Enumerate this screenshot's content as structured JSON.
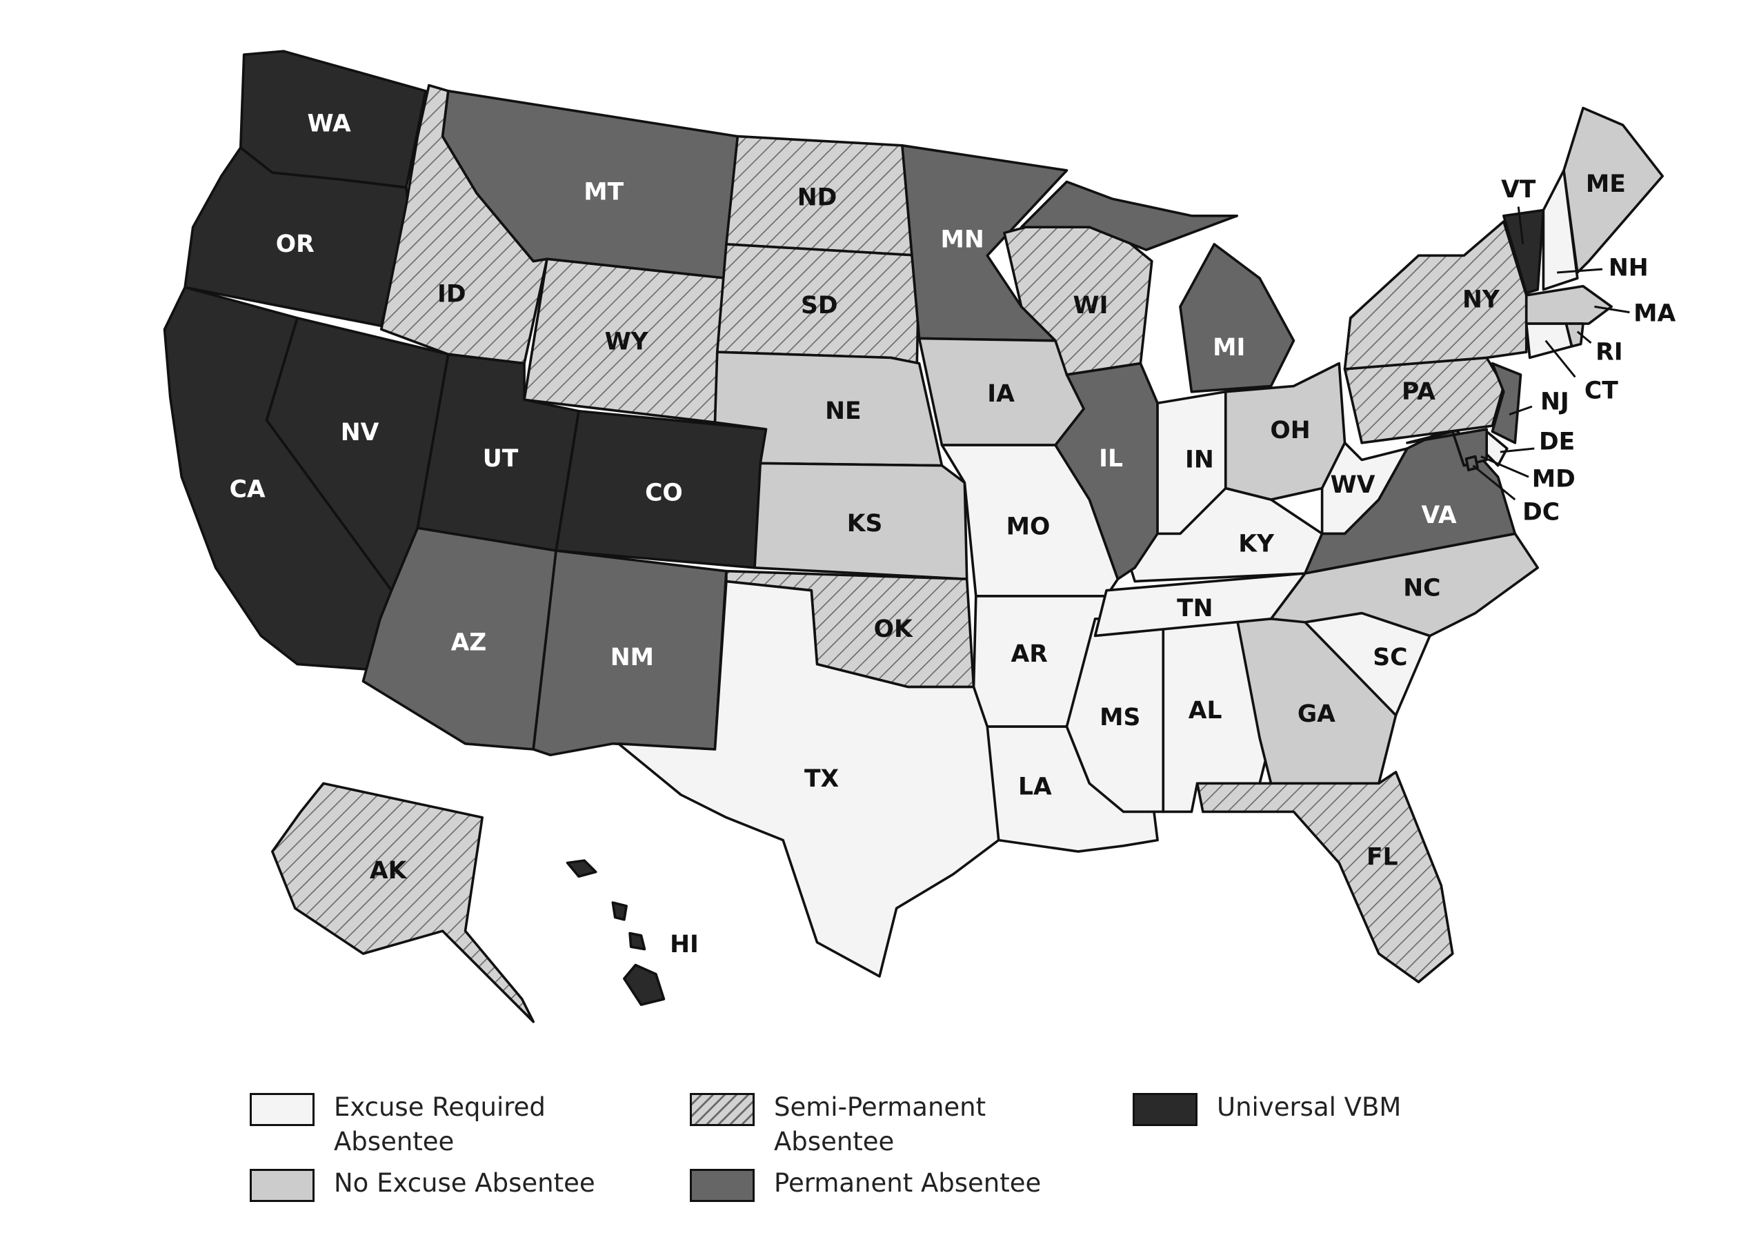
{
  "states": [
    {
      "label": "WA",
      "category": "Universal VBM"
    },
    {
      "label": "OR",
      "category": "Universal VBM"
    },
    {
      "label": "CA",
      "category": "Universal VBM"
    },
    {
      "label": "NV",
      "category": "Universal VBM"
    },
    {
      "label": "ID",
      "category": "Semi-Permanent Absentee"
    },
    {
      "label": "MT",
      "category": "Permanent Absentee"
    },
    {
      "label": "WY",
      "category": "Semi-Permanent Absentee"
    },
    {
      "label": "UT",
      "category": "Universal VBM"
    },
    {
      "label": "CO",
      "category": "Universal VBM"
    },
    {
      "label": "AZ",
      "category": "Permanent Absentee"
    },
    {
      "label": "NM",
      "category": "Permanent Absentee"
    },
    {
      "label": "ND",
      "category": "Semi-Permanent Absentee"
    },
    {
      "label": "SD",
      "category": "Semi-Permanent Absentee"
    },
    {
      "label": "NE",
      "category": "No Excuse Absentee"
    },
    {
      "label": "KS",
      "category": "No Excuse Absentee"
    },
    {
      "label": "OK",
      "category": "Semi-Permanent Absentee"
    },
    {
      "label": "TX",
      "category": "Excuse Required Absentee"
    },
    {
      "label": "MN",
      "category": "Permanent Absentee"
    },
    {
      "label": "IA",
      "category": "No Excuse Absentee"
    },
    {
      "label": "MO",
      "category": "Excuse Required Absentee"
    },
    {
      "label": "AR",
      "category": "Excuse Required Absentee"
    },
    {
      "label": "LA",
      "category": "Excuse Required Absentee"
    },
    {
      "label": "MS",
      "category": "Excuse Required Absentee"
    },
    {
      "label": "AL",
      "category": "Excuse Required Absentee"
    },
    {
      "label": "GA",
      "category": "No Excuse Absentee"
    },
    {
      "label": "FL",
      "category": "Semi-Permanent Absentee"
    },
    {
      "label": "SC",
      "category": "Excuse Required Absentee"
    },
    {
      "label": "NC",
      "category": "No Excuse Absentee"
    },
    {
      "label": "TN",
      "category": "Excuse Required Absentee"
    },
    {
      "label": "KY",
      "category": "Excuse Required Absentee"
    },
    {
      "label": "WI",
      "category": "Semi-Permanent Absentee"
    },
    {
      "label": "IL",
      "category": "Permanent Absentee"
    },
    {
      "label": "IN",
      "category": "Excuse Required Absentee"
    },
    {
      "label": "MI",
      "category": "Permanent Absentee"
    },
    {
      "label": "OH",
      "category": "No Excuse Absentee"
    },
    {
      "label": "WV",
      "category": "Excuse Required Absentee"
    },
    {
      "label": "VA",
      "category": "Permanent Absentee"
    },
    {
      "label": "PA",
      "category": "Semi-Permanent Absentee"
    },
    {
      "label": "NY",
      "category": "Semi-Permanent Absentee"
    },
    {
      "label": "VT",
      "category": "Universal VBM"
    },
    {
      "label": "NH",
      "category": "Excuse Required Absentee"
    },
    {
      "label": "ME",
      "category": "No Excuse Absentee"
    },
    {
      "label": "MA",
      "category": "No Excuse Absentee"
    },
    {
      "label": "RI",
      "category": "No Excuse Absentee"
    },
    {
      "label": "CT",
      "category": "Excuse Required Absentee"
    },
    {
      "label": "NJ",
      "category": "Permanent Absentee"
    },
    {
      "label": "DE",
      "category": "Excuse Required Absentee"
    },
    {
      "label": "MD",
      "category": "Permanent Absentee"
    },
    {
      "label": "DC",
      "category": "Permanent Absentee"
    },
    {
      "label": "AK",
      "category": "Semi-Permanent Absentee"
    },
    {
      "label": "HI",
      "category": "Universal VBM"
    }
  ],
  "legend": [
    {
      "label": "Excuse Required Absentee",
      "fill": "#f4f4f4",
      "hatch": false,
      "text_color": "#111111"
    },
    {
      "label": "No Excuse Absentee",
      "fill": "#cccccc",
      "hatch": false,
      "text_color": "#111111"
    },
    {
      "label": "Semi-Permanent Absentee",
      "fill": "#d2d2d2",
      "hatch": true,
      "text_color": "#111111"
    },
    {
      "label": "Permanent Absentee",
      "fill": "#666666",
      "hatch": false,
      "text_color": "#ffffff"
    },
    {
      "label": "Universal VBM",
      "fill": "#2a2a2a",
      "hatch": false,
      "text_color": "#ffffff"
    }
  ]
}
